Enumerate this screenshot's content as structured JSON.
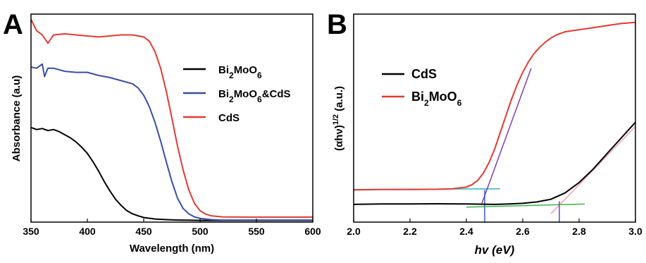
{
  "chart_data": [
    {
      "panel_label": "A",
      "type": "line",
      "xlabel": "Wavelength (nm)",
      "ylabel": "Absorbance (a.u)",
      "xlim": [
        350,
        600
      ],
      "ylim": [
        0,
        1
      ],
      "xticks": [
        "350",
        "400",
        "450",
        "500",
        "550",
        "600"
      ],
      "legend_position": "center-right",
      "series": [
        {
          "name": "Bi2MoO6",
          "name_html": "Bi<tspan baseline-shift='sub' font-size='12'>2</tspan>MoO<tspan baseline-shift='sub' font-size='12'>6</tspan>",
          "color": "#000000",
          "x": [
            350,
            355,
            360,
            365,
            370,
            375,
            380,
            385,
            390,
            395,
            400,
            405,
            410,
            415,
            420,
            425,
            430,
            435,
            440,
            445,
            450,
            460,
            470,
            480,
            490,
            500,
            520,
            540,
            560,
            580,
            600
          ],
          "y": [
            0.455,
            0.445,
            0.45,
            0.44,
            0.445,
            0.435,
            0.42,
            0.405,
            0.385,
            0.36,
            0.33,
            0.29,
            0.245,
            0.195,
            0.15,
            0.11,
            0.08,
            0.055,
            0.04,
            0.03,
            0.022,
            0.015,
            0.012,
            0.01,
            0.009,
            0.008,
            0.008,
            0.008,
            0.008,
            0.008,
            0.008
          ]
        },
        {
          "name": "Bi2MoO6&CdS",
          "name_html": "Bi<tspan baseline-shift='sub' font-size='12'>2</tspan>MoO<tspan baseline-shift='sub' font-size='12'>6</tspan>&amp;CdS",
          "color": "#3a4ea5",
          "x": [
            350,
            355,
            360,
            362,
            365,
            370,
            380,
            390,
            400,
            410,
            420,
            430,
            440,
            445,
            450,
            455,
            460,
            465,
            470,
            475,
            480,
            485,
            490,
            495,
            500,
            510,
            520,
            540,
            560,
            580,
            600
          ],
          "y": [
            0.745,
            0.74,
            0.76,
            0.7,
            0.74,
            0.74,
            0.725,
            0.72,
            0.72,
            0.705,
            0.695,
            0.68,
            0.665,
            0.645,
            0.61,
            0.555,
            0.48,
            0.39,
            0.29,
            0.195,
            0.115,
            0.065,
            0.04,
            0.025,
            0.018,
            0.012,
            0.01,
            0.01,
            0.01,
            0.01,
            0.01
          ]
        },
        {
          "name": "CdS",
          "name_html": "CdS",
          "color": "#e23a33",
          "x": [
            350,
            355,
            360,
            365,
            370,
            380,
            390,
            400,
            410,
            420,
            430,
            440,
            450,
            455,
            460,
            465,
            470,
            475,
            480,
            485,
            490,
            495,
            500,
            505,
            510,
            520,
            540,
            560,
            580,
            600
          ],
          "y": [
            0.975,
            0.92,
            0.9,
            0.86,
            0.9,
            0.905,
            0.9,
            0.895,
            0.89,
            0.895,
            0.9,
            0.9,
            0.89,
            0.87,
            0.82,
            0.74,
            0.63,
            0.5,
            0.365,
            0.25,
            0.155,
            0.09,
            0.055,
            0.038,
            0.03,
            0.025,
            0.024,
            0.024,
            0.024,
            0.024
          ]
        }
      ]
    },
    {
      "panel_label": "B",
      "type": "line",
      "xlabel_html": "<tspan font-style='italic'>hv (eV)</tspan>",
      "ylabel_html": "(αhν)<tspan baseline-shift='super' font-size='11'>1/2</tspan> (a.u.)",
      "xlim": [
        2.0,
        3.0
      ],
      "ylim": [
        0,
        1
      ],
      "xticks": [
        "2.0",
        "2.2",
        "2.4",
        "2.6",
        "2.8",
        "3.0"
      ],
      "legend_position": "top-left",
      "series": [
        {
          "name": "CdS",
          "name_html": "CdS",
          "color": "#000000",
          "x": [
            2.0,
            2.1,
            2.2,
            2.3,
            2.4,
            2.5,
            2.55,
            2.6,
            2.65,
            2.7,
            2.75,
            2.8,
            2.85,
            2.9,
            2.95,
            3.0
          ],
          "y": [
            0.085,
            0.087,
            0.087,
            0.088,
            0.087,
            0.085,
            0.087,
            0.09,
            0.097,
            0.11,
            0.14,
            0.19,
            0.255,
            0.33,
            0.405,
            0.48
          ]
        },
        {
          "name": "Bi2MoO6",
          "name_html": "Bi<tspan baseline-shift='sub' font-size='12'>2</tspan>MoO<tspan baseline-shift='sub' font-size='12'>6</tspan>",
          "color": "#e23a33",
          "x": [
            2.0,
            2.1,
            2.2,
            2.3,
            2.35,
            2.4,
            2.42,
            2.44,
            2.46,
            2.48,
            2.5,
            2.52,
            2.54,
            2.56,
            2.58,
            2.6,
            2.62,
            2.64,
            2.66,
            2.68,
            2.7,
            2.72,
            2.75,
            2.8,
            2.85,
            2.9,
            2.95,
            3.0
          ],
          "y": [
            0.155,
            0.157,
            0.157,
            0.158,
            0.16,
            0.168,
            0.18,
            0.2,
            0.235,
            0.285,
            0.35,
            0.43,
            0.51,
            0.59,
            0.66,
            0.72,
            0.77,
            0.81,
            0.84,
            0.865,
            0.885,
            0.9,
            0.915,
            0.925,
            0.935,
            0.945,
            0.955,
            0.96
          ]
        }
      ],
      "guide_lines": [
        {
          "color": "#2fb7c4",
          "x": [
            2.0,
            2.52
          ],
          "y": [
            0.157,
            0.16
          ]
        },
        {
          "color": "#7b3fb5",
          "x": [
            2.455,
            2.63
          ],
          "y": [
            0.09,
            0.74
          ]
        },
        {
          "color": "#3d56c8",
          "x": [
            2.465,
            2.465
          ],
          "y": [
            0.0,
            0.155
          ]
        },
        {
          "color": "#3bb14b",
          "x": [
            2.4,
            2.82
          ],
          "y": [
            0.072,
            0.087
          ]
        },
        {
          "color": "#f3a1b0",
          "x": [
            2.7,
            3.0
          ],
          "y": [
            0.04,
            0.46
          ]
        },
        {
          "color": "#3d56c8",
          "x": [
            2.73,
            2.73
          ],
          "y": [
            0.0,
            0.1
          ]
        }
      ]
    }
  ]
}
